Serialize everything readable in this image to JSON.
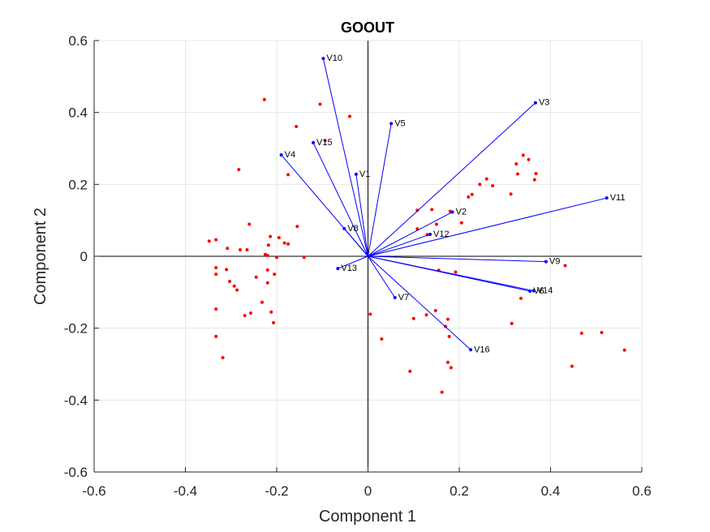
{
  "chart_data": {
    "type": "scatter",
    "title": "GOOUT",
    "xlabel": "Component 1",
    "ylabel": "Component 2",
    "xlim": [
      -0.6,
      0.6
    ],
    "ylim": [
      -0.6,
      0.6
    ],
    "xticks": [
      -0.6,
      -0.4,
      -0.2,
      0,
      0.2,
      0.4,
      0.6
    ],
    "yticks": [
      -0.6,
      -0.4,
      -0.2,
      0,
      0.2,
      0.4,
      0.6
    ],
    "xtick_labels": [
      "-0.6",
      "-0.4",
      "-0.2",
      "0",
      "0.2",
      "0.4",
      "0.6"
    ],
    "ytick_labels": [
      "-0.6",
      "-0.4",
      "-0.2",
      "0",
      "0.2",
      "0.4",
      "0.6"
    ],
    "grid": true,
    "colors": {
      "vectors": "#0000ff",
      "observations": "#ff0000",
      "axes": "#262626",
      "grid": "#e6e6e6"
    },
    "vectors": [
      {
        "label": "V1",
        "x": -0.026,
        "y": 0.228
      },
      {
        "label": "V2",
        "x": 0.185,
        "y": 0.123
      },
      {
        "label": "V3",
        "x": 0.367,
        "y": 0.427
      },
      {
        "label": "V4",
        "x": -0.19,
        "y": 0.282
      },
      {
        "label": "V5",
        "x": 0.051,
        "y": 0.369
      },
      {
        "label": "V6",
        "x": 0.355,
        "y": -0.097
      },
      {
        "label": "V7",
        "x": 0.059,
        "y": -0.115
      },
      {
        "label": "V8",
        "x": -0.052,
        "y": 0.077
      },
      {
        "label": "V9",
        "x": 0.39,
        "y": -0.015
      },
      {
        "label": "V10",
        "x": -0.098,
        "y": 0.55
      },
      {
        "label": "V11",
        "x": 0.523,
        "y": 0.162
      },
      {
        "label": "V12",
        "x": 0.136,
        "y": 0.061
      },
      {
        "label": "V13",
        "x": -0.066,
        "y": -0.034
      },
      {
        "label": "V14",
        "x": 0.363,
        "y": -0.096
      },
      {
        "label": "V15",
        "x": -0.12,
        "y": 0.316
      },
      {
        "label": "V16",
        "x": 0.225,
        "y": -0.26
      }
    ],
    "observations": [
      [
        -0.227,
        0.436
      ],
      [
        -0.105,
        0.423
      ],
      [
        -0.04,
        0.389
      ],
      [
        -0.157,
        0.361
      ],
      [
        -0.094,
        0.322
      ],
      [
        -0.283,
        0.241
      ],
      [
        -0.175,
        0.227
      ],
      [
        -0.26,
        0.089
      ],
      [
        -0.155,
        0.083
      ],
      [
        -0.348,
        0.042
      ],
      [
        -0.333,
        0.046
      ],
      [
        -0.195,
        0.052
      ],
      [
        -0.183,
        0.037
      ],
      [
        -0.214,
        0.055
      ],
      [
        -0.218,
        0.031
      ],
      [
        -0.308,
        0.022
      ],
      [
        -0.28,
        0.018
      ],
      [
        -0.265,
        0.018
      ],
      [
        -0.225,
        0.005
      ],
      [
        -0.22,
        0.002
      ],
      [
        -0.2,
        -0.003
      ],
      [
        -0.14,
        -0.003
      ],
      [
        -0.175,
        0.034
      ],
      [
        -0.333,
        -0.032
      ],
      [
        -0.31,
        -0.037
      ],
      [
        -0.333,
        -0.05
      ],
      [
        -0.245,
        -0.058
      ],
      [
        -0.22,
        -0.038
      ],
      [
        -0.205,
        -0.05
      ],
      [
        -0.303,
        -0.07
      ],
      [
        -0.293,
        -0.083
      ],
      [
        -0.287,
        -0.094
      ],
      [
        -0.22,
        -0.074
      ],
      [
        -0.232,
        -0.128
      ],
      [
        -0.333,
        -0.147
      ],
      [
        -0.257,
        -0.158
      ],
      [
        -0.27,
        -0.165
      ],
      [
        -0.212,
        -0.155
      ],
      [
        -0.207,
        -0.185
      ],
      [
        -0.333,
        -0.223
      ],
      [
        -0.318,
        -0.282
      ],
      [
        0.34,
        0.281
      ],
      [
        0.352,
        0.269
      ],
      [
        0.325,
        0.257
      ],
      [
        0.368,
        0.23
      ],
      [
        0.328,
        0.229
      ],
      [
        0.365,
        0.213
      ],
      [
        0.26,
        0.215
      ],
      [
        0.273,
        0.196
      ],
      [
        0.245,
        0.2
      ],
      [
        0.313,
        0.173
      ],
      [
        0.228,
        0.172
      ],
      [
        0.22,
        0.165
      ],
      [
        0.18,
        0.125
      ],
      [
        0.14,
        0.13
      ],
      [
        0.108,
        0.128
      ],
      [
        0.205,
        0.093
      ],
      [
        0.15,
        0.089
      ],
      [
        0.108,
        0.076
      ],
      [
        0.13,
        0.06
      ],
      [
        0.155,
        -0.039
      ],
      [
        0.192,
        -0.044
      ],
      [
        0.432,
        -0.026
      ],
      [
        0.335,
        -0.117
      ],
      [
        0.005,
        -0.161
      ],
      [
        0.148,
        -0.151
      ],
      [
        0.128,
        -0.163
      ],
      [
        0.1,
        -0.173
      ],
      [
        0.175,
        -0.175
      ],
      [
        0.17,
        -0.195
      ],
      [
        0.178,
        -0.223
      ],
      [
        0.03,
        -0.23
      ],
      [
        0.315,
        -0.187
      ],
      [
        0.468,
        -0.214
      ],
      [
        0.512,
        -0.212
      ],
      [
        0.175,
        -0.295
      ],
      [
        0.182,
        -0.31
      ],
      [
        0.092,
        -0.32
      ],
      [
        0.447,
        -0.306
      ],
      [
        0.562,
        -0.261
      ],
      [
        0.162,
        -0.378
      ]
    ]
  }
}
